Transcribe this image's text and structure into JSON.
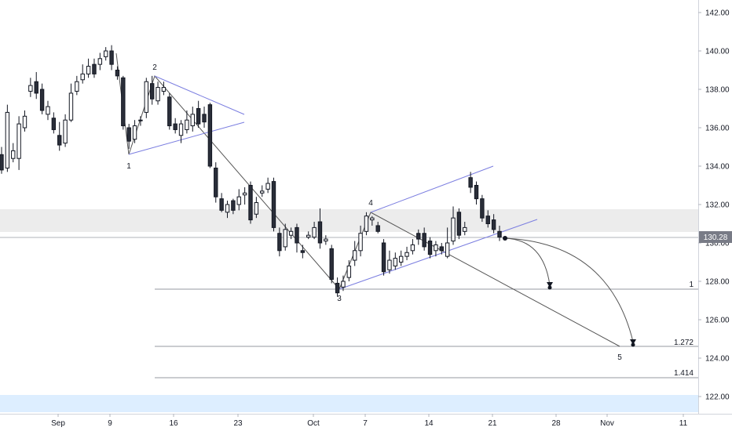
{
  "chart_data": {
    "type": "candlestick",
    "y_ticks": [
      "142.00",
      "140.00",
      "138.00",
      "136.00",
      "134.00",
      "132.00",
      "130.00",
      "128.00",
      "126.00",
      "124.00",
      "122.00"
    ],
    "x_ticks": [
      "Sep",
      "9",
      "16",
      "23",
      "Oct",
      "7",
      "14",
      "21",
      "28",
      "Nov",
      "11"
    ],
    "current_price": "130.28",
    "ylim": [
      121.5,
      142.7
    ],
    "candles": [
      [
        134.6,
        133.8,
        135.0,
        133.6
      ],
      [
        133.9,
        136.8,
        137.2,
        133.7
      ],
      [
        134.4,
        134.8,
        135.2,
        134.2
      ],
      [
        134.4,
        136.2,
        136.6,
        133.8
      ],
      [
        136.0,
        136.6,
        136.9,
        135.8
      ],
      [
        137.9,
        138.2,
        138.6,
        137.6
      ],
      [
        138.4,
        137.8,
        138.9,
        137.5
      ],
      [
        138.0,
        136.9,
        138.3,
        136.7
      ],
      [
        136.7,
        137.1,
        137.4,
        136.4
      ],
      [
        136.5,
        135.9,
        136.8,
        135.7
      ],
      [
        135.6,
        135.1,
        136.3,
        134.8
      ],
      [
        135.2,
        136.4,
        136.7,
        135.0
      ],
      [
        136.4,
        137.8,
        138.3,
        136.3
      ],
      [
        137.9,
        138.4,
        138.7,
        137.7
      ],
      [
        138.5,
        138.8,
        139.3,
        138.3
      ],
      [
        138.8,
        139.2,
        139.6,
        138.6
      ],
      [
        139.3,
        138.8,
        139.6,
        138.6
      ],
      [
        139.3,
        139.6,
        139.9,
        139.0
      ],
      [
        139.7,
        140.0,
        140.2,
        139.5
      ],
      [
        140.0,
        139.3,
        140.3,
        139.0
      ],
      [
        139.0,
        138.7,
        139.2,
        138.5
      ],
      [
        138.6,
        136.1,
        138.7,
        135.9
      ],
      [
        136.0,
        135.3,
        136.2,
        134.9
      ],
      [
        135.4,
        136.1,
        136.4,
        135.2
      ],
      [
        136.4,
        136.4,
        136.6,
        136.1
      ],
      [
        136.8,
        138.4,
        138.6,
        136.5
      ],
      [
        138.3,
        137.5,
        138.7,
        137.2
      ],
      [
        137.4,
        138.1,
        138.4,
        137.2
      ],
      [
        137.9,
        138.1,
        138.4,
        137.7
      ],
      [
        137.6,
        136.1,
        137.8,
        135.9
      ],
      [
        136.2,
        135.9,
        136.5,
        135.7
      ],
      [
        135.6,
        136.2,
        136.4,
        135.2
      ],
      [
        135.9,
        136.4,
        136.9,
        135.7
      ],
      [
        136.1,
        136.7,
        137.1,
        135.8
      ],
      [
        137.0,
        136.2,
        137.4,
        136.0
      ],
      [
        136.7,
        136.3,
        137.1,
        136.0
      ],
      [
        137.2,
        134.0,
        137.3,
        133.9
      ],
      [
        133.9,
        132.4,
        134.2,
        132.1
      ],
      [
        132.3,
        131.7,
        132.6,
        131.6
      ],
      [
        131.6,
        132.0,
        132.2,
        131.3
      ],
      [
        132.2,
        131.7,
        132.3,
        131.5
      ],
      [
        132.0,
        132.4,
        132.8,
        131.7
      ],
      [
        132.5,
        132.6,
        132.9,
        132.0
      ],
      [
        133.0,
        131.2,
        133.2,
        131.0
      ],
      [
        131.5,
        132.1,
        132.4,
        131.3
      ],
      [
        132.6,
        132.7,
        133.0,
        132.4
      ],
      [
        132.8,
        133.1,
        133.4,
        132.6
      ],
      [
        133.2,
        130.8,
        133.4,
        130.6
      ],
      [
        130.5,
        129.6,
        130.8,
        129.3
      ],
      [
        129.8,
        130.7,
        131.0,
        129.6
      ],
      [
        130.4,
        130.6,
        130.8,
        130.2
      ],
      [
        130.8,
        130.0,
        131.0,
        129.5
      ],
      [
        129.6,
        129.5,
        129.9,
        129.2
      ],
      [
        130.3,
        130.4,
        130.6,
        130.2
      ],
      [
        130.3,
        130.8,
        131.1,
        130.2
      ],
      [
        131.1,
        130.0,
        131.8,
        129.7
      ],
      [
        130.1,
        130.2,
        130.4,
        129.9
      ],
      [
        129.7,
        128.1,
        129.9,
        127.9
      ],
      [
        127.9,
        127.4,
        128.2,
        127.2
      ],
      [
        127.7,
        128.0,
        128.3,
        127.5
      ],
      [
        128.2,
        128.8,
        129.1,
        128.0
      ],
      [
        129.1,
        129.6,
        130.1,
        128.8
      ],
      [
        129.6,
        130.5,
        130.9,
        129.3
      ],
      [
        130.6,
        131.4,
        131.6,
        130.4
      ],
      [
        131.2,
        131.3,
        131.4,
        130.9
      ],
      [
        130.9,
        130.6,
        131.1,
        130.5
      ],
      [
        130.0,
        128.5,
        130.2,
        128.3
      ],
      [
        128.6,
        129.1,
        129.6,
        128.4
      ],
      [
        128.8,
        129.2,
        129.5,
        128.6
      ],
      [
        129.0,
        129.3,
        129.6,
        128.8
      ],
      [
        129.3,
        129.5,
        129.8,
        129.1
      ],
      [
        129.6,
        129.9,
        130.2,
        129.4
      ],
      [
        130.5,
        130.2,
        130.7,
        129.9
      ],
      [
        130.5,
        129.8,
        130.8,
        129.6
      ],
      [
        130.1,
        129.4,
        130.3,
        129.2
      ],
      [
        129.6,
        129.9,
        130.1,
        129.3
      ],
      [
        129.8,
        129.6,
        130.0,
        129.4
      ],
      [
        129.3,
        130.0,
        130.8,
        129.2
      ],
      [
        130.1,
        131.3,
        131.9,
        129.9
      ],
      [
        131.6,
        130.4,
        131.8,
        130.2
      ],
      [
        130.6,
        130.8,
        131.1,
        130.4
      ],
      [
        133.4,
        132.9,
        133.7,
        132.6
      ],
      [
        133.0,
        132.3,
        133.2,
        132.0
      ],
      [
        132.3,
        131.3,
        132.5,
        131.1
      ],
      [
        131.4,
        131.0,
        131.7,
        130.8
      ],
      [
        131.2,
        130.7,
        131.5,
        130.5
      ],
      [
        130.6,
        130.3,
        130.9,
        130.1
      ]
    ],
    "annotations": {
      "wave_labels": [
        "1",
        "2",
        "3",
        "4",
        "5"
      ],
      "fib_labels": [
        "1",
        "1.272",
        "1.414"
      ]
    }
  }
}
